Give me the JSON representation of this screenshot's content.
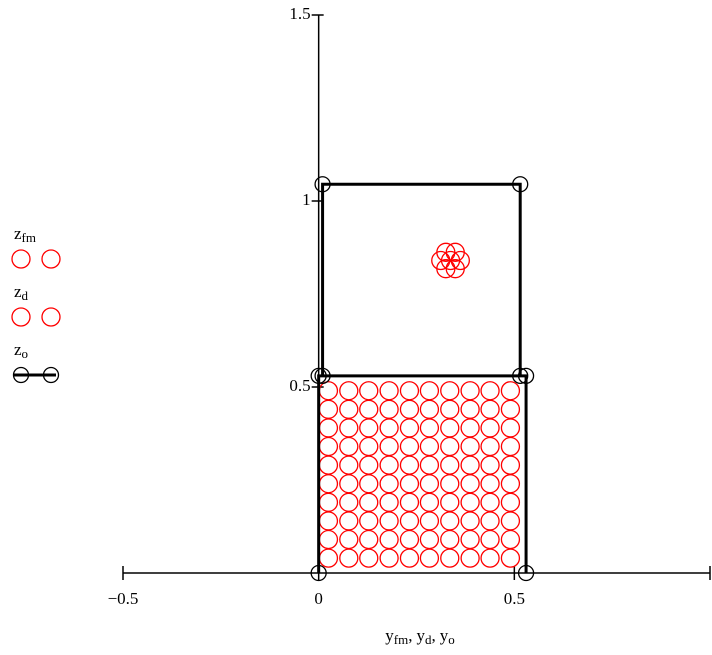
{
  "chart_data": {
    "type": "scatter",
    "xlabel": [
      {
        "text": "y",
        "sub": "fm"
      },
      {
        "text": "y",
        "sub": "d"
      },
      {
        "text": "y",
        "sub": "o"
      }
    ],
    "xlabel_separator": ",",
    "xlim": [
      -0.5,
      1
    ],
    "ylim": [
      0,
      1.5
    ],
    "xticks": [
      {
        "value": -0.5,
        "label": "−0.5"
      },
      0,
      0.5
    ],
    "yticks": [
      0.5,
      1,
      1.5
    ],
    "series": [
      {
        "name": "z",
        "sub": "fm",
        "color": "#ff0000",
        "marker": "circle",
        "line": false,
        "x": [
          0.025,
          0.077,
          0.128,
          0.18,
          0.232,
          0.283,
          0.335,
          0.387,
          0.438,
          0.49,
          0.025,
          0.077,
          0.128,
          0.18,
          0.232,
          0.283,
          0.335,
          0.387,
          0.438,
          0.49,
          0.025,
          0.077,
          0.128,
          0.18,
          0.232,
          0.283,
          0.335,
          0.387,
          0.438,
          0.49,
          0.025,
          0.077,
          0.128,
          0.18,
          0.232,
          0.283,
          0.335,
          0.387,
          0.438,
          0.49,
          0.025,
          0.077,
          0.128,
          0.18,
          0.232,
          0.283,
          0.335,
          0.387,
          0.438,
          0.49,
          0.025,
          0.077,
          0.128,
          0.18,
          0.232,
          0.283,
          0.335,
          0.387,
          0.438,
          0.49,
          0.025,
          0.077,
          0.128,
          0.18,
          0.232,
          0.283,
          0.335,
          0.387,
          0.438,
          0.49,
          0.025,
          0.077,
          0.128,
          0.18,
          0.232,
          0.283,
          0.335,
          0.387,
          0.438,
          0.49,
          0.025,
          0.077,
          0.128,
          0.18,
          0.232,
          0.283,
          0.335,
          0.387,
          0.438,
          0.49,
          0.025,
          0.077,
          0.128,
          0.18,
          0.232,
          0.283,
          0.335,
          0.387,
          0.438,
          0.49
        ],
        "y": [
          0.04,
          0.04,
          0.04,
          0.04,
          0.04,
          0.04,
          0.04,
          0.04,
          0.04,
          0.04,
          0.09,
          0.09,
          0.09,
          0.09,
          0.09,
          0.09,
          0.09,
          0.09,
          0.09,
          0.09,
          0.14,
          0.14,
          0.14,
          0.14,
          0.14,
          0.14,
          0.14,
          0.14,
          0.14,
          0.14,
          0.19,
          0.19,
          0.19,
          0.19,
          0.19,
          0.19,
          0.19,
          0.19,
          0.19,
          0.19,
          0.24,
          0.24,
          0.24,
          0.24,
          0.24,
          0.24,
          0.24,
          0.24,
          0.24,
          0.24,
          0.29,
          0.29,
          0.29,
          0.29,
          0.29,
          0.29,
          0.29,
          0.29,
          0.29,
          0.29,
          0.34,
          0.34,
          0.34,
          0.34,
          0.34,
          0.34,
          0.34,
          0.34,
          0.34,
          0.34,
          0.39,
          0.39,
          0.39,
          0.39,
          0.39,
          0.39,
          0.39,
          0.39,
          0.39,
          0.39,
          0.44,
          0.44,
          0.44,
          0.44,
          0.44,
          0.44,
          0.44,
          0.44,
          0.44,
          0.44,
          0.49,
          0.49,
          0.49,
          0.49,
          0.49,
          0.49,
          0.49,
          0.49,
          0.49,
          0.49
        ]
      },
      {
        "name": "z",
        "sub": "d",
        "color": "#ff0000",
        "marker": "circle",
        "line": false,
        "x": [
          0.337,
          0.362,
          0.312,
          0.349,
          0.325,
          0.349,
          0.325
        ],
        "y": [
          0.84,
          0.84,
          0.84,
          0.862,
          0.862,
          0.818,
          0.818
        ]
      },
      {
        "name": "z",
        "sub": "o",
        "color": "#000000",
        "marker": "circle",
        "line": true,
        "x": [
          0,
          0,
          0.53,
          0.53,
          null,
          0.01,
          0.01,
          0.515,
          0.515
        ],
        "y": [
          0,
          0.53,
          0.53,
          0,
          null,
          0.53,
          1.045,
          1.045,
          0.53
        ]
      }
    ]
  }
}
